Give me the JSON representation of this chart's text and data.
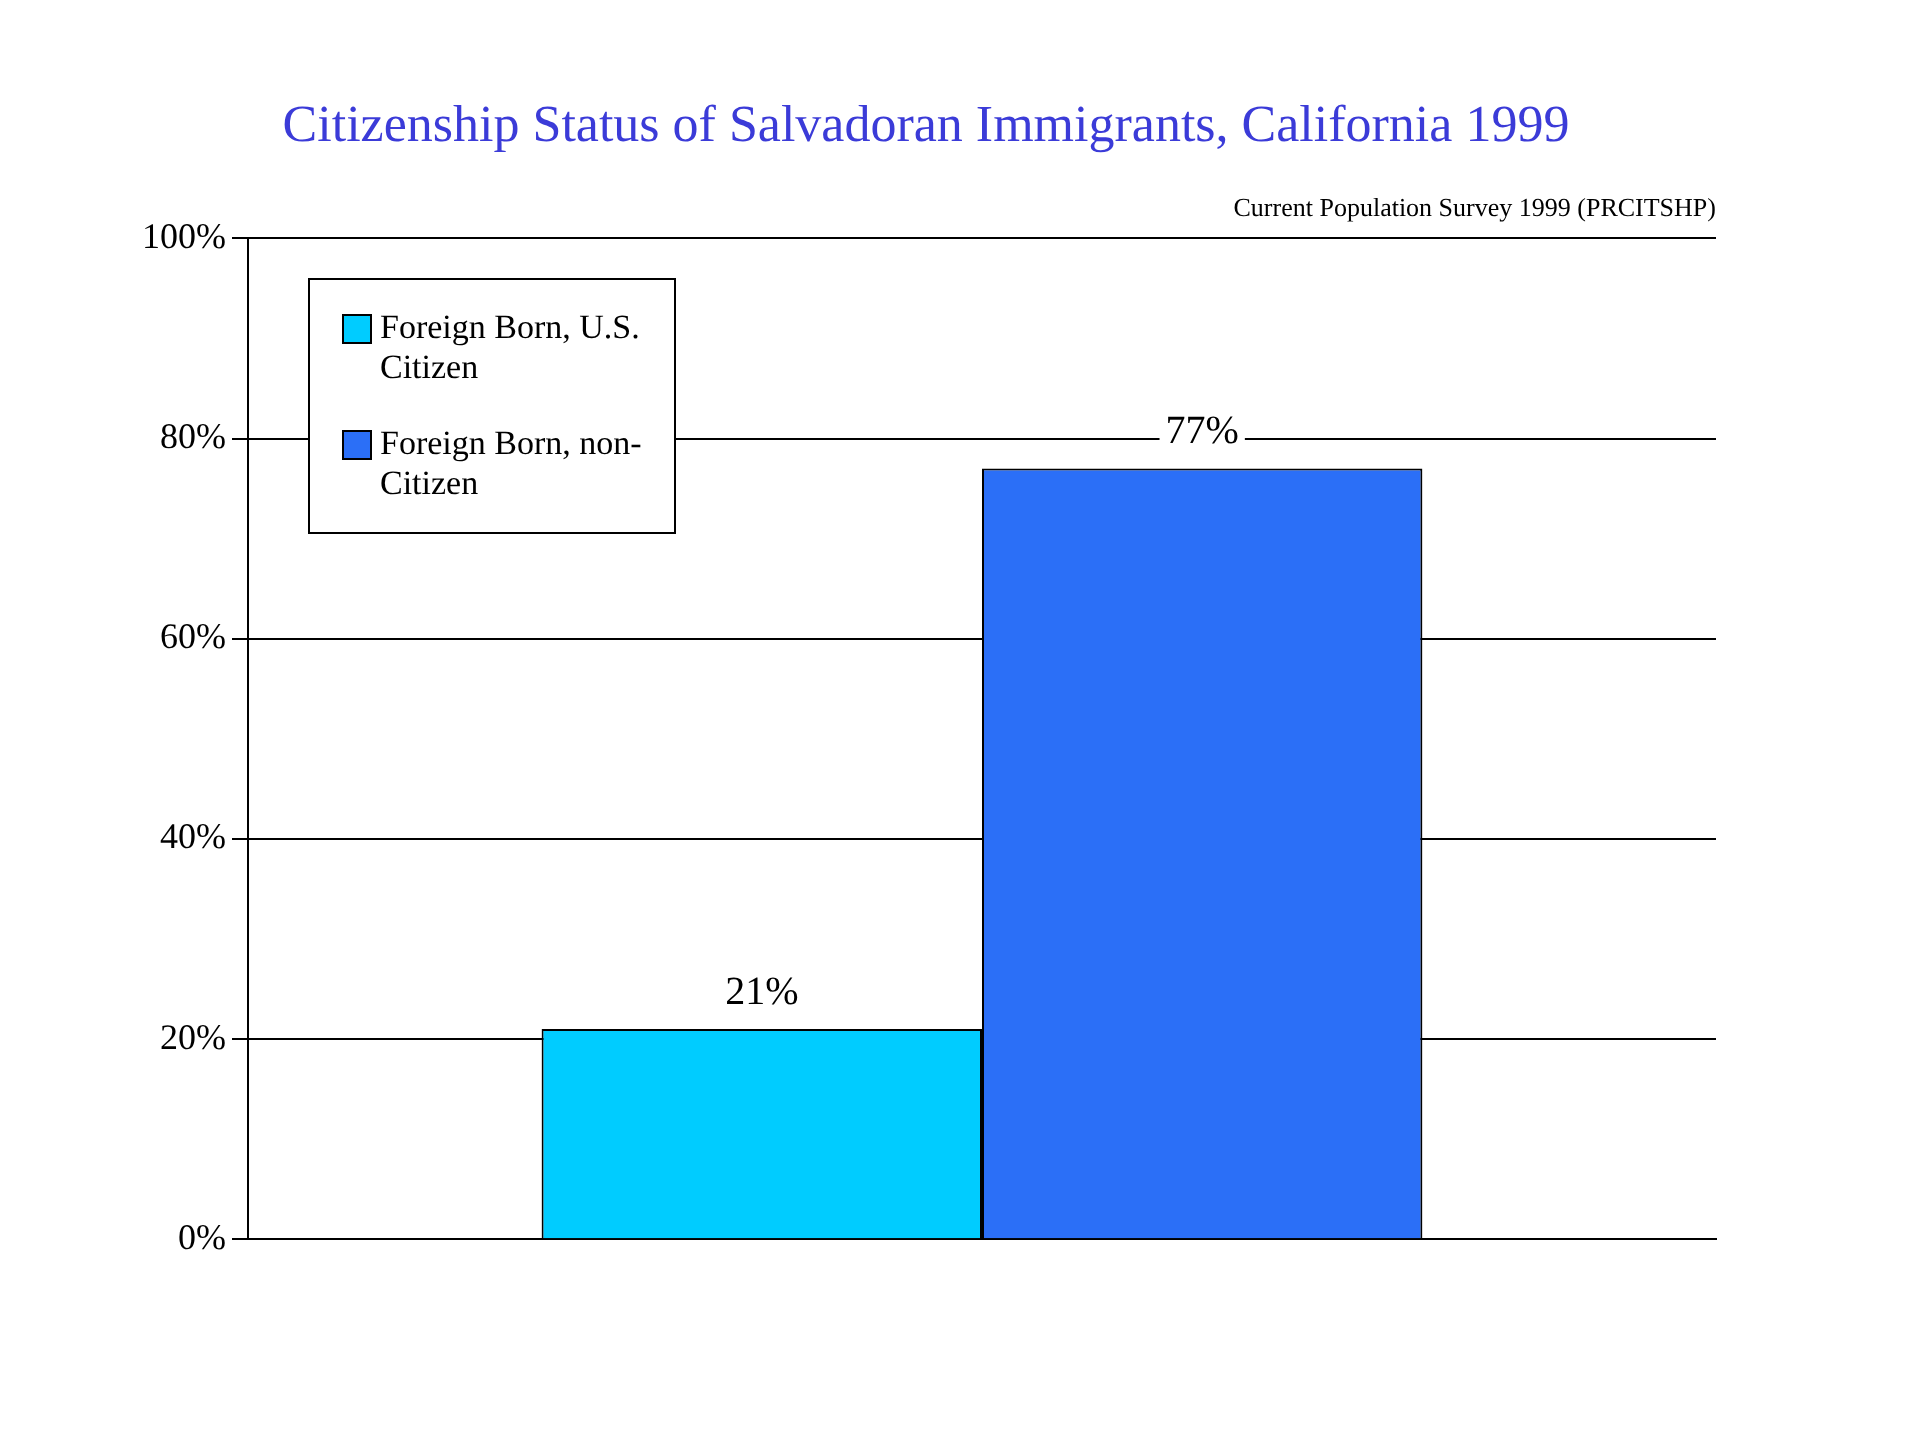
{
  "chart_data": {
    "type": "bar",
    "title": "Citizenship Status of Salvadoran Immigrants, California 1999",
    "annotations": [
      "Current Population Survey 1999 (PRCITSHP)"
    ],
    "categories": [
      null
    ],
    "series": [
      {
        "name": "Foreign Born, U.S. Citizen",
        "color": "#00ccff",
        "values": [
          21
        ],
        "value_labels": [
          "21%"
        ]
      },
      {
        "name": "Foreign Born, non-Citizen",
        "color": "#2b6ff7",
        "values": [
          77
        ],
        "value_labels": [
          "77%"
        ]
      }
    ],
    "ylim": [
      0,
      100
    ],
    "yticks": [
      {
        "value": 0,
        "label": "0%"
      },
      {
        "value": 20,
        "label": "20%"
      },
      {
        "value": 40,
        "label": "40%"
      },
      {
        "value": 60,
        "label": "60%"
      },
      {
        "value": 80,
        "label": "80%"
      },
      {
        "value": 100,
        "label": "100%"
      }
    ],
    "grid": "y",
    "legend": "top left"
  }
}
